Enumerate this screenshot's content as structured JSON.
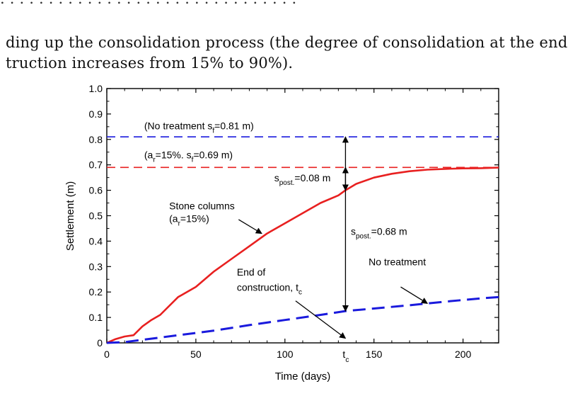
{
  "document": {
    "lines": [
      "ding up the consolidation process (the degree of consolidation at the end",
      "truction increases from 15% to 90%)."
    ]
  },
  "chart_data": {
    "type": "line",
    "xlabel": "Time (days)",
    "ylabel": "Settlement (m)",
    "xlim": [
      0,
      220
    ],
    "ylim": [
      0,
      1.0
    ],
    "x_ticks": [
      0,
      50,
      100,
      150,
      200
    ],
    "y_ticks": [
      0,
      0.1,
      0.2,
      0.3,
      0.4,
      0.5,
      0.6,
      0.7,
      0.8,
      0.9,
      1.0
    ],
    "y_tick_labels": [
      "0",
      "0.1",
      "0.2",
      "0.3",
      "0.4",
      "0.5",
      "0.6",
      "0.7",
      "0.8",
      "0.9",
      "1.0"
    ],
    "grid": false,
    "tc_value": 134,
    "tc_label": {
      "base": "t",
      "sub": "c"
    },
    "colors": {
      "stone_columns": "#e82020",
      "no_treatment": "#1a1add"
    },
    "series": [
      {
        "name": "Stone columns",
        "style": "solid",
        "x": [
          0,
          5,
          10,
          15,
          20,
          25,
          30,
          40,
          50,
          60,
          70,
          80,
          90,
          100,
          110,
          120,
          130,
          134,
          140,
          150,
          160,
          170,
          180,
          190,
          200,
          210,
          220
        ],
        "y": [
          0,
          0.015,
          0.025,
          0.03,
          0.065,
          0.09,
          0.11,
          0.18,
          0.22,
          0.28,
          0.33,
          0.38,
          0.43,
          0.47,
          0.51,
          0.55,
          0.58,
          0.6,
          0.625,
          0.65,
          0.665,
          0.675,
          0.681,
          0.684,
          0.686,
          0.687,
          0.689
        ]
      },
      {
        "name": "No treatment",
        "style": "dashed",
        "x": [
          0,
          10,
          20,
          40,
          60,
          80,
          100,
          120,
          134,
          150,
          170,
          190,
          210,
          220
        ],
        "y": [
          0,
          0.003,
          0.012,
          0.03,
          0.048,
          0.07,
          0.09,
          0.11,
          0.125,
          0.135,
          0.148,
          0.162,
          0.175,
          0.18
        ]
      },
      {
        "name": "No treatment s_f",
        "style": "dashed",
        "x": [
          0,
          220
        ],
        "y": [
          0.81,
          0.81
        ]
      },
      {
        "name": "a_r=15% s_f",
        "style": "dashed",
        "x": [
          0,
          220
        ],
        "y": [
          0.69,
          0.69
        ]
      }
    ],
    "annotations": [
      {
        "key": "no_treatment_sf",
        "x": 21,
        "y": 0.84,
        "parts": [
          {
            "t": "(No treatment s"
          },
          {
            "t": "f",
            "sub": true
          },
          {
            "t": "=0.81 m)"
          }
        ]
      },
      {
        "key": "ar_sf",
        "x": 21,
        "y": 0.725,
        "parts": [
          {
            "t": "(a"
          },
          {
            "t": "r",
            "sub": true
          },
          {
            "t": "=15%. s"
          },
          {
            "t": "f",
            "sub": true
          },
          {
            "t": "=0.69 m)"
          }
        ]
      },
      {
        "key": "spost_small",
        "x": 94,
        "y": 0.635,
        "parts": [
          {
            "t": "s"
          },
          {
            "t": "post.",
            "sub": true
          },
          {
            "t": "=0.08 m"
          }
        ]
      },
      {
        "key": "spost_large",
        "x": 137,
        "y": 0.425,
        "parts": [
          {
            "t": "s"
          },
          {
            "t": "post.",
            "sub": true
          },
          {
            "t": "=0.68 m"
          }
        ]
      },
      {
        "key": "stone_columns",
        "x": 35,
        "y": 0.525,
        "parts": [
          {
            "t": "Stone columns"
          }
        ]
      },
      {
        "key": "stone_columns_ar",
        "x": 35,
        "y": 0.475,
        "parts": [
          {
            "t": "(a"
          },
          {
            "t": "r",
            "sub": true
          },
          {
            "t": "=15%)"
          }
        ]
      },
      {
        "key": "no_treatment",
        "x": 147,
        "y": 0.305,
        "parts": [
          {
            "t": "No treatment"
          }
        ]
      },
      {
        "key": "end_construction",
        "x": 73,
        "y": 0.265,
        "parts": [
          {
            "t": "End of"
          }
        ]
      },
      {
        "key": "end_construction_tc",
        "x": 73,
        "y": 0.205,
        "parts": [
          {
            "t": "construction, t"
          },
          {
            "t": "c",
            "sub": true
          }
        ]
      }
    ],
    "arrows": [
      {
        "name": "stone-columns-pointer-arrow",
        "from": [
          74,
          0.485
        ],
        "to": [
          87,
          0.43
        ],
        "head": "end"
      },
      {
        "name": "no-treatment-pointer-arrow",
        "from": [
          165,
          0.22
        ],
        "to": [
          180,
          0.155
        ],
        "head": "end"
      },
      {
        "name": "end-construction-pointer-arrow",
        "from": [
          106,
          0.165
        ],
        "to": [
          134,
          0.018
        ],
        "head": "end"
      },
      {
        "name": "spost-large-arrow",
        "from": [
          134,
          0.125
        ],
        "to": [
          134,
          0.81
        ],
        "head": "both"
      },
      {
        "name": "spost-small-arrow",
        "from": [
          134,
          0.6
        ],
        "to": [
          134,
          0.69
        ],
        "head": "both"
      }
    ]
  }
}
